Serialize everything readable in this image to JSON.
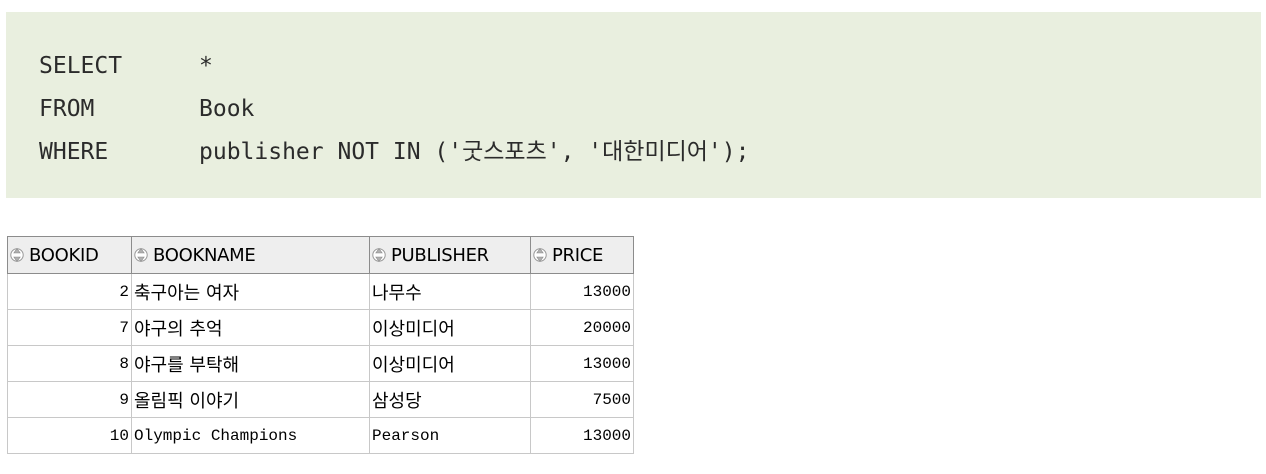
{
  "query": {
    "lines": [
      {
        "keyword": "SELECT",
        "expr": "*"
      },
      {
        "keyword": "FROM",
        "expr": "Book"
      },
      {
        "keyword": "WHERE",
        "expr": "publisher NOT IN ('굿스포츠', '대한미디어');"
      }
    ]
  },
  "result": {
    "columns": [
      "BOOKID",
      "BOOKNAME",
      "PUBLISHER",
      "PRICE"
    ],
    "rows": [
      {
        "bookid": "2",
        "bookname": "축구아는 여자",
        "publisher": "나무수",
        "price": "13000"
      },
      {
        "bookid": "7",
        "bookname": "야구의 추억",
        "publisher": "이상미디어",
        "price": "20000"
      },
      {
        "bookid": "8",
        "bookname": "야구를 부탁해",
        "publisher": "이상미디어",
        "price": "13000"
      },
      {
        "bookid": "9",
        "bookname": "올림픽 이야기",
        "publisher": "삼성당",
        "price": "7500"
      },
      {
        "bookid": "10",
        "bookname": "Olympic Champions",
        "publisher": "Pearson",
        "price": "13000"
      }
    ]
  },
  "icons": {
    "column_header": "sort-arrows-icon"
  }
}
